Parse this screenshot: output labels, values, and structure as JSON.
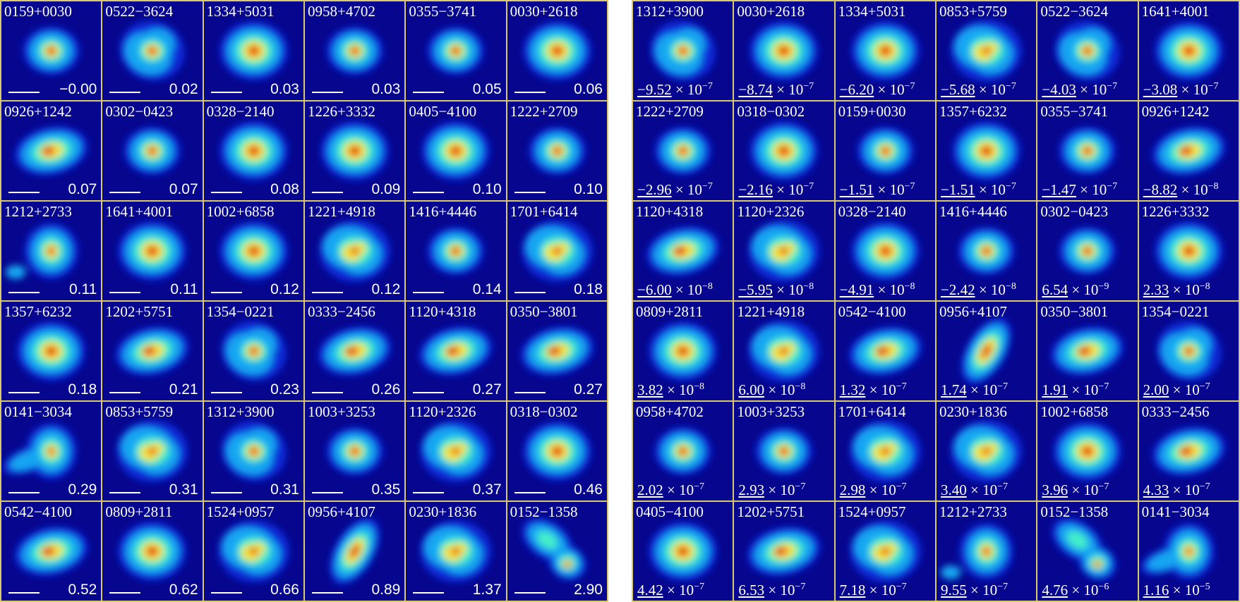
{
  "panels": [
    {
      "id": "left",
      "cells": [
        {
          "name": "0159+0030",
          "value": "−0.00",
          "shape": "compact"
        },
        {
          "name": "0522−3624",
          "value": "0.02",
          "shape": "star"
        },
        {
          "name": "1334+5031",
          "value": "0.03",
          "shape": "round"
        },
        {
          "name": "0958+4702",
          "value": "0.03",
          "shape": "compact"
        },
        {
          "name": "0355−3741",
          "value": "0.05",
          "shape": "compact"
        },
        {
          "name": "0030+2618",
          "value": "0.06",
          "shape": "round"
        },
        {
          "name": "0926+1242",
          "value": "0.07",
          "shape": "elong"
        },
        {
          "name": "0302−0423",
          "value": "0.07",
          "shape": "compact"
        },
        {
          "name": "0328−2140",
          "value": "0.08",
          "shape": "round"
        },
        {
          "name": "1226+3332",
          "value": "0.09",
          "shape": "round"
        },
        {
          "name": "0405−4100",
          "value": "0.10",
          "shape": "round"
        },
        {
          "name": "1222+2709",
          "value": "0.10",
          "shape": "compact"
        },
        {
          "name": "1212+2733",
          "value": "0.11",
          "shape": "knot"
        },
        {
          "name": "1641+4001",
          "value": "0.11",
          "shape": "round"
        },
        {
          "name": "1002+6858",
          "value": "0.12",
          "shape": "round"
        },
        {
          "name": "1221+4918",
          "value": "0.12",
          "shape": "clumpy"
        },
        {
          "name": "1416+4446",
          "value": "0.14",
          "shape": "compact"
        },
        {
          "name": "1701+6414",
          "value": "0.18",
          "shape": "clumpy"
        },
        {
          "name": "1357+6232",
          "value": "0.18",
          "shape": "round"
        },
        {
          "name": "1202+5751",
          "value": "0.21",
          "shape": "elong"
        },
        {
          "name": "1354−0221",
          "value": "0.23",
          "shape": "star"
        },
        {
          "name": "0333−2456",
          "value": "0.26",
          "shape": "elong"
        },
        {
          "name": "1120+4318",
          "value": "0.27",
          "shape": "elong"
        },
        {
          "name": "0350−3801",
          "value": "0.27",
          "shape": "elong"
        },
        {
          "name": "0141−3034",
          "value": "0.29",
          "shape": "tidal"
        },
        {
          "name": "0853+5759",
          "value": "0.31",
          "shape": "clumpy"
        },
        {
          "name": "1312+3900",
          "value": "0.31",
          "shape": "star"
        },
        {
          "name": "1003+3253",
          "value": "0.35",
          "shape": "compact"
        },
        {
          "name": "1120+2326",
          "value": "0.37",
          "shape": "clumpy"
        },
        {
          "name": "0318−0302",
          "value": "0.46",
          "shape": "round"
        },
        {
          "name": "0542−4100",
          "value": "0.52",
          "shape": "elong"
        },
        {
          "name": "0809+2811",
          "value": "0.62",
          "shape": "round"
        },
        {
          "name": "1524+0957",
          "value": "0.66",
          "shape": "clumpy"
        },
        {
          "name": "0956+4107",
          "value": "0.89",
          "shape": "diag"
        },
        {
          "name": "0230+1836",
          "value": "1.37",
          "shape": "clumpy"
        },
        {
          "name": "0152−1358",
          "value": "2.90",
          "shape": "merger"
        }
      ]
    },
    {
      "id": "right",
      "cells": [
        {
          "name": "1312+3900",
          "mant": "−9.52",
          "exp": "−7",
          "shape": "star"
        },
        {
          "name": "0030+2618",
          "mant": "−8.74",
          "exp": "−7",
          "shape": "round"
        },
        {
          "name": "1334+5031",
          "mant": "−6.20",
          "exp": "−7",
          "shape": "round"
        },
        {
          "name": "0853+5759",
          "mant": "−5.68",
          "exp": "−7",
          "shape": "clumpy"
        },
        {
          "name": "0522−3624",
          "mant": "−4.03",
          "exp": "−7",
          "shape": "star"
        },
        {
          "name": "1641+4001",
          "mant": "−3.08",
          "exp": "−7",
          "shape": "round"
        },
        {
          "name": "1222+2709",
          "mant": "−2.96",
          "exp": "−7",
          "shape": "compact"
        },
        {
          "name": "0318−0302",
          "mant": "−2.16",
          "exp": "−7",
          "shape": "round"
        },
        {
          "name": "0159+0030",
          "mant": "−1.51",
          "exp": "−7",
          "shape": "compact"
        },
        {
          "name": "1357+6232",
          "mant": "−1.51",
          "exp": "−7",
          "shape": "round"
        },
        {
          "name": "0355−3741",
          "mant": "−1.47",
          "exp": "−7",
          "shape": "compact"
        },
        {
          "name": "0926+1242",
          "mant": "−8.82",
          "exp": "−8",
          "shape": "elong"
        },
        {
          "name": "1120+4318",
          "mant": "−6.00",
          "exp": "−8",
          "shape": "elong"
        },
        {
          "name": "1120+2326",
          "mant": "−5.95",
          "exp": "−8",
          "shape": "clumpy"
        },
        {
          "name": "0328−2140",
          "mant": "−4.91",
          "exp": "−8",
          "shape": "round"
        },
        {
          "name": "1416+4446",
          "mant": "−2.42",
          "exp": "−8",
          "shape": "compact"
        },
        {
          "name": "0302−0423",
          "mant": "6.54",
          "exp": "−9",
          "shape": "compact"
        },
        {
          "name": "1226+3332",
          "mant": "2.33",
          "exp": "−8",
          "shape": "round"
        },
        {
          "name": "0809+2811",
          "mant": "3.82",
          "exp": "−8",
          "shape": "round"
        },
        {
          "name": "1221+4918",
          "mant": "6.00",
          "exp": "−8",
          "shape": "clumpy"
        },
        {
          "name": "0542−4100",
          "mant": "1.32",
          "exp": "−7",
          "shape": "elong"
        },
        {
          "name": "0956+4107",
          "mant": "1.74",
          "exp": "−7",
          "shape": "diag"
        },
        {
          "name": "0350−3801",
          "mant": "1.91",
          "exp": "−7",
          "shape": "elong"
        },
        {
          "name": "1354−0221",
          "mant": "2.00",
          "exp": "−7",
          "shape": "star"
        },
        {
          "name": "0958+4702",
          "mant": "2.02",
          "exp": "−7",
          "shape": "compact"
        },
        {
          "name": "1003+3253",
          "mant": "2.93",
          "exp": "−7",
          "shape": "compact"
        },
        {
          "name": "1701+6414",
          "mant": "2.98",
          "exp": "−7",
          "shape": "clumpy"
        },
        {
          "name": "0230+1836",
          "mant": "3.40",
          "exp": "−7",
          "shape": "clumpy"
        },
        {
          "name": "1002+6858",
          "mant": "3.96",
          "exp": "−7",
          "shape": "round"
        },
        {
          "name": "0333−2456",
          "mant": "4.33",
          "exp": "−7",
          "shape": "elong"
        },
        {
          "name": "0405−4100",
          "mant": "4.42",
          "exp": "−7",
          "shape": "round"
        },
        {
          "name": "1202+5751",
          "mant": "6.53",
          "exp": "−7",
          "shape": "elong"
        },
        {
          "name": "1524+0957",
          "mant": "7.18",
          "exp": "−7",
          "shape": "clumpy"
        },
        {
          "name": "1212+2733",
          "mant": "9.55",
          "exp": "−7",
          "shape": "knot"
        },
        {
          "name": "0152−1358",
          "mant": "4.76",
          "exp": "−6",
          "shape": "merger"
        },
        {
          "name": "0141−3034",
          "mant": "1.16",
          "exp": "−5",
          "shape": "tidal"
        }
      ]
    }
  ],
  "colors": {
    "background": "#06068e",
    "grid_border": "#d9c96a",
    "label_text": "#ffffff"
  }
}
